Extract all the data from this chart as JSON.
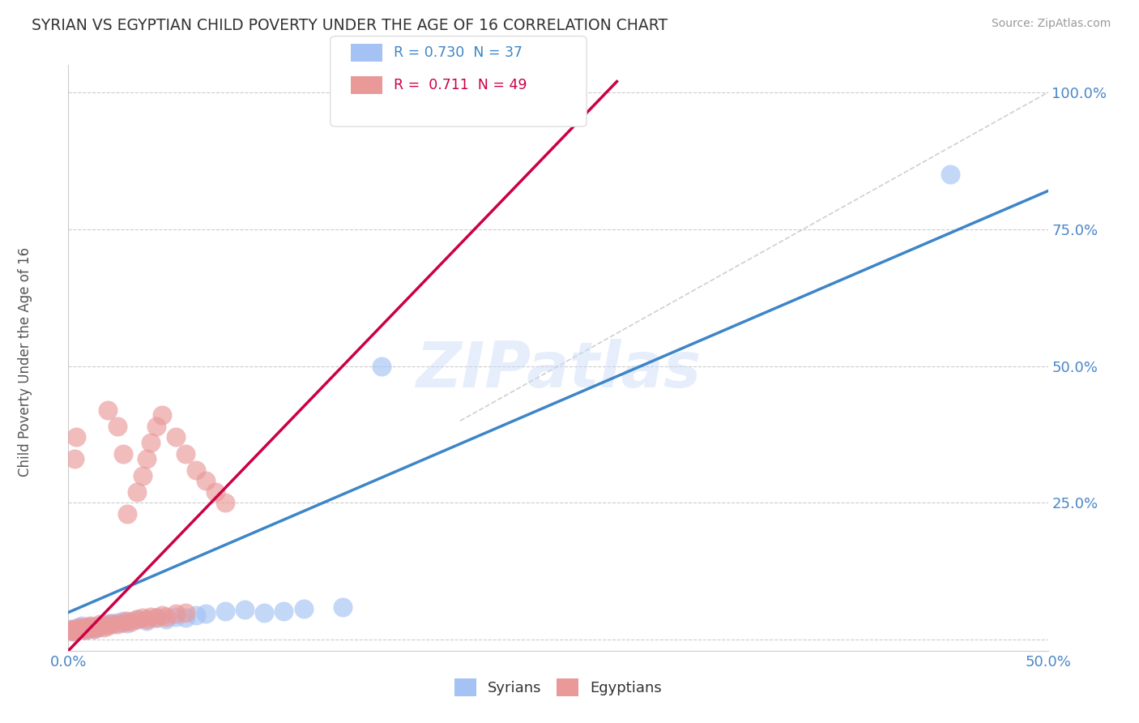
{
  "title": "SYRIAN VS EGYPTIAN CHILD POVERTY UNDER THE AGE OF 16 CORRELATION CHART",
  "source": "Source: ZipAtlas.com",
  "ylabel": "Child Poverty Under the Age of 16",
  "xlim": [
    0.0,
    0.5
  ],
  "ylim": [
    -0.02,
    1.05
  ],
  "watermark": "ZIPatlas",
  "syrian_color": "#a4c2f4",
  "egyptian_color": "#ea9999",
  "syrian_line_color": "#3d85c8",
  "egyptian_line_color": "#cc0044",
  "syrian_R": "0.730",
  "syrian_N": 37,
  "egyptian_R": "0.711",
  "egyptian_N": 49,
  "syrian_points": [
    [
      0.001,
      0.02
    ],
    [
      0.002,
      0.018
    ],
    [
      0.003,
      0.015
    ],
    [
      0.004,
      0.017
    ],
    [
      0.005,
      0.022
    ],
    [
      0.006,
      0.019
    ],
    [
      0.007,
      0.025
    ],
    [
      0.008,
      0.021
    ],
    [
      0.009,
      0.018
    ],
    [
      0.01,
      0.02
    ],
    [
      0.011,
      0.022
    ],
    [
      0.012,
      0.024
    ],
    [
      0.013,
      0.019
    ],
    [
      0.015,
      0.023
    ],
    [
      0.016,
      0.025
    ],
    [
      0.018,
      0.027
    ],
    [
      0.02,
      0.03
    ],
    [
      0.022,
      0.028
    ],
    [
      0.025,
      0.032
    ],
    [
      0.028,
      0.035
    ],
    [
      0.03,
      0.03
    ],
    [
      0.035,
      0.038
    ],
    [
      0.04,
      0.035
    ],
    [
      0.045,
      0.04
    ],
    [
      0.05,
      0.038
    ],
    [
      0.055,
      0.042
    ],
    [
      0.06,
      0.04
    ],
    [
      0.065,
      0.045
    ],
    [
      0.07,
      0.048
    ],
    [
      0.08,
      0.052
    ],
    [
      0.09,
      0.055
    ],
    [
      0.1,
      0.05
    ],
    [
      0.11,
      0.053
    ],
    [
      0.12,
      0.057
    ],
    [
      0.14,
      0.06
    ],
    [
      0.16,
      0.5
    ],
    [
      0.45,
      0.85
    ]
  ],
  "egyptian_points": [
    [
      0.001,
      0.018
    ],
    [
      0.002,
      0.015
    ],
    [
      0.003,
      0.02
    ],
    [
      0.004,
      0.017
    ],
    [
      0.005,
      0.019
    ],
    [
      0.006,
      0.022
    ],
    [
      0.007,
      0.02
    ],
    [
      0.008,
      0.018
    ],
    [
      0.009,
      0.023
    ],
    [
      0.01,
      0.021
    ],
    [
      0.011,
      0.025
    ],
    [
      0.012,
      0.022
    ],
    [
      0.013,
      0.02
    ],
    [
      0.015,
      0.024
    ],
    [
      0.016,
      0.028
    ],
    [
      0.018,
      0.022
    ],
    [
      0.02,
      0.025
    ],
    [
      0.022,
      0.03
    ],
    [
      0.025,
      0.028
    ],
    [
      0.028,
      0.032
    ],
    [
      0.03,
      0.035
    ],
    [
      0.032,
      0.033
    ],
    [
      0.035,
      0.038
    ],
    [
      0.038,
      0.04
    ],
    [
      0.04,
      0.038
    ],
    [
      0.042,
      0.042
    ],
    [
      0.045,
      0.04
    ],
    [
      0.048,
      0.045
    ],
    [
      0.05,
      0.042
    ],
    [
      0.055,
      0.048
    ],
    [
      0.06,
      0.05
    ],
    [
      0.03,
      0.23
    ],
    [
      0.035,
      0.27
    ],
    [
      0.038,
      0.3
    ],
    [
      0.04,
      0.33
    ],
    [
      0.042,
      0.36
    ],
    [
      0.045,
      0.39
    ],
    [
      0.048,
      0.41
    ],
    [
      0.003,
      0.33
    ],
    [
      0.004,
      0.37
    ],
    [
      0.02,
      0.42
    ],
    [
      0.025,
      0.39
    ],
    [
      0.028,
      0.34
    ],
    [
      0.055,
      0.37
    ],
    [
      0.06,
      0.34
    ],
    [
      0.065,
      0.31
    ],
    [
      0.07,
      0.29
    ],
    [
      0.075,
      0.27
    ],
    [
      0.08,
      0.25
    ]
  ],
  "blue_line": {
    "x0": 0.0,
    "y0": 0.05,
    "x1": 0.5,
    "y1": 0.82
  },
  "pink_line": {
    "x0": 0.0,
    "y0": -0.02,
    "x1": 0.28,
    "y1": 1.02
  },
  "ref_line": {
    "x0": 0.2,
    "y0": 0.4,
    "x1": 0.5,
    "y1": 1.0
  },
  "background_color": "#ffffff",
  "grid_color": "#cccccc",
  "title_color": "#333333",
  "tick_label_color": "#4a86c8"
}
